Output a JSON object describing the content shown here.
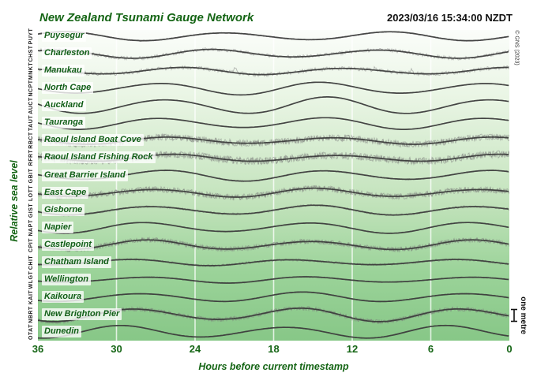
{
  "chart_data": {
    "type": "line",
    "title": "New Zealand Tsunami Gauge Network",
    "timestamp_label": "2023/03/16 15:34:00 NZDT",
    "xlabel": "Hours before current timestamp",
    "ylabel": "Relative sea level",
    "x_ticks": [
      36,
      30,
      24,
      18,
      12,
      6,
      0
    ],
    "x_range_hours": [
      36,
      0
    ],
    "grid": "vertical white gridlines every 6 hours",
    "tide_period_hours": 12.4,
    "scale_bar": {
      "label": "one metre",
      "metres": 1
    },
    "credit": "© GNS (2023)",
    "stations": [
      {
        "code": "PUYT",
        "name": "Puysegur",
        "amplitude_m": 0.31,
        "crest_hour": 34.0,
        "noise_m": 0.06
      },
      {
        "code": "CHST",
        "name": "Charleston",
        "amplitude_m": 0.31,
        "crest_hour": 22.6,
        "noise_m": 0.14
      },
      {
        "code": "MNKT",
        "name": "Manukau",
        "amplitude_m": 0.25,
        "crest_hour": 25.0,
        "noise_m": 0.15,
        "spikes": [
          {
            "hour": 20.9,
            "metres": 0.5
          },
          {
            "hour": 10.3,
            "metres": 0.2
          },
          {
            "hour": 7.5,
            "metres": 0.55
          }
        ]
      },
      {
        "code": "NCPT",
        "name": "North Cape",
        "amplitude_m": 0.44,
        "crest_hour": 26.8,
        "noise_m": 0.03
      },
      {
        "code": "AUCT",
        "name": "Auckland",
        "amplitude_m": 0.59,
        "crest_hour": 26.3,
        "noise_m": 0.03
      },
      {
        "code": "TAUT",
        "name": "Tauranga",
        "amplitude_m": 0.41,
        "crest_hour": 26.6,
        "noise_m": 0.03
      },
      {
        "code": "RBCT",
        "name": "Raoul Island Boat Cove",
        "amplitude_m": 0.25,
        "crest_hour": 26.0,
        "noise_m": 0.26
      },
      {
        "code": "RFRT",
        "name": "Raoul Island Fishing Rock",
        "amplitude_m": 0.25,
        "crest_hour": 25.6,
        "noise_m": 0.29
      },
      {
        "code": "GBIT",
        "name": "Great Barrier Island",
        "amplitude_m": 0.38,
        "crest_hour": 26.4,
        "noise_m": 0.06
      },
      {
        "code": "LOTT",
        "name": "East Cape",
        "amplitude_m": 0.31,
        "crest_hour": 27.2,
        "noise_m": 0.23
      },
      {
        "code": "GIST",
        "name": "Gisborne",
        "amplitude_m": 0.34,
        "crest_hour": 27.3,
        "noise_m": 0.09
      },
      {
        "code": "NAPT",
        "name": "Napier",
        "amplitude_m": 0.38,
        "crest_hour": 27.8,
        "noise_m": 0.05
      },
      {
        "code": "CPIT",
        "name": "Castlepoint",
        "amplitude_m": 0.34,
        "crest_hour": 27.6,
        "noise_m": 0.19
      },
      {
        "code": "CHIT",
        "name": "Chatham Island",
        "amplitude_m": 0.22,
        "crest_hour": 29.0,
        "noise_m": 0.1
      },
      {
        "code": "WLGT",
        "name": "Wellington",
        "amplitude_m": 0.22,
        "crest_hour": 27.8,
        "noise_m": 0.06
      },
      {
        "code": "KAIT",
        "name": "Kaikoura",
        "amplitude_m": 0.34,
        "crest_hour": 28.2,
        "noise_m": 0.06
      },
      {
        "code": "NBRT",
        "name": "New Brighton Pier",
        "amplitude_m": 0.47,
        "crest_hour": 28.5,
        "noise_m": 0.16
      },
      {
        "code": "OTAT",
        "name": "Dunedin",
        "amplitude_m": 0.44,
        "crest_hour": 29.6,
        "noise_m": 0.05
      }
    ]
  },
  "colors": {
    "green_text": "#156515",
    "label_green": "#115e17",
    "trace": "#3a3a3a",
    "noise": "#787878",
    "gridline": "#ffffff",
    "bg_top": "#fbfdfa",
    "bg_bottom": "#87c787"
  }
}
